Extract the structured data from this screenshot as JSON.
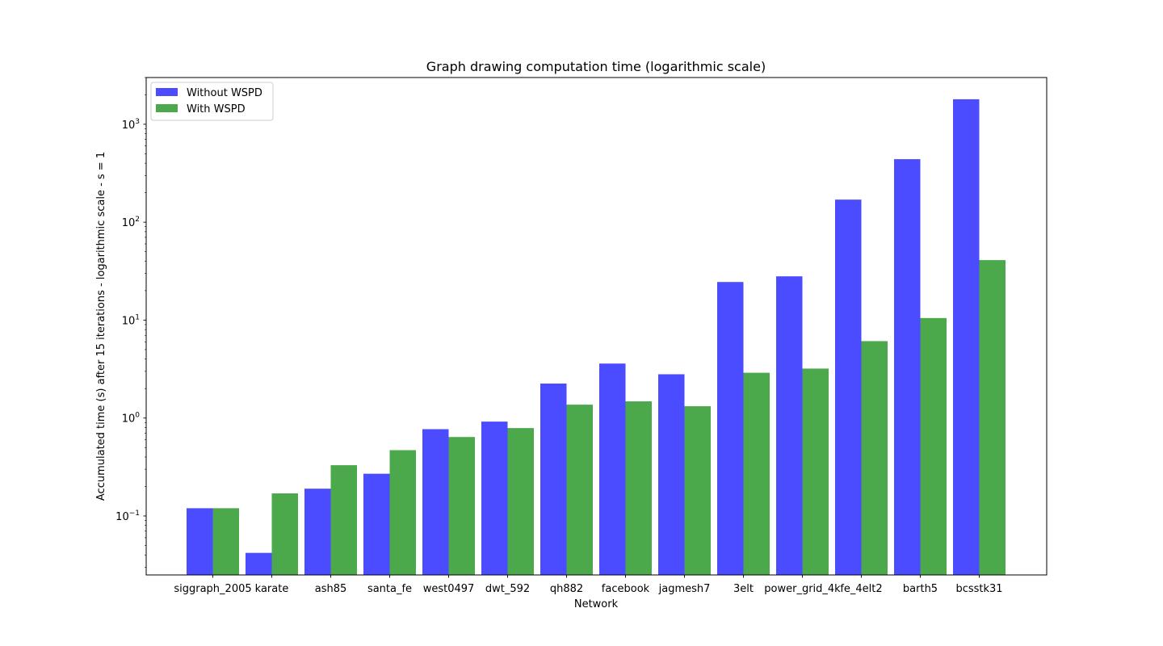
{
  "chart_data": {
    "type": "bar",
    "title": "Graph drawing computation time (logarithmic scale)",
    "xlabel": "Network",
    "ylabel": "Accumulated time (s) after 15 iterations - logarithmic scale - s = 1",
    "yscale": "log",
    "ylim": [
      0.025,
      3000
    ],
    "yticks": [
      {
        "value": 0.1,
        "base": "10",
        "exp": "−1"
      },
      {
        "value": 1,
        "base": "10",
        "exp": "0"
      },
      {
        "value": 10,
        "base": "10",
        "exp": "1"
      },
      {
        "value": 100,
        "base": "10",
        "exp": "2"
      },
      {
        "value": 1000,
        "base": "10",
        "exp": "3"
      }
    ],
    "categories": [
      "siggraph_2005",
      "karate",
      "ash85",
      "santa_fe",
      "west0497",
      "dwt_592",
      "qh882",
      "facebook",
      "jagmesh7",
      "3elt",
      "power_grid_4k",
      "fe_4elt2",
      "barth5",
      "bcsstk31"
    ],
    "series": [
      {
        "name": "Without WSPD",
        "color": "#4b4bff",
        "values": [
          0.12,
          0.042,
          0.19,
          0.27,
          0.77,
          0.92,
          2.25,
          3.6,
          2.8,
          24.5,
          28,
          170,
          440,
          1800
        ]
      },
      {
        "name": "With WSPD",
        "color": "#4ba84b",
        "values": [
          0.12,
          0.17,
          0.33,
          0.47,
          0.64,
          0.79,
          1.37,
          1.48,
          1.32,
          2.9,
          3.2,
          6.1,
          10.5,
          41
        ]
      }
    ],
    "grid": false,
    "legend_position": "top-left"
  }
}
